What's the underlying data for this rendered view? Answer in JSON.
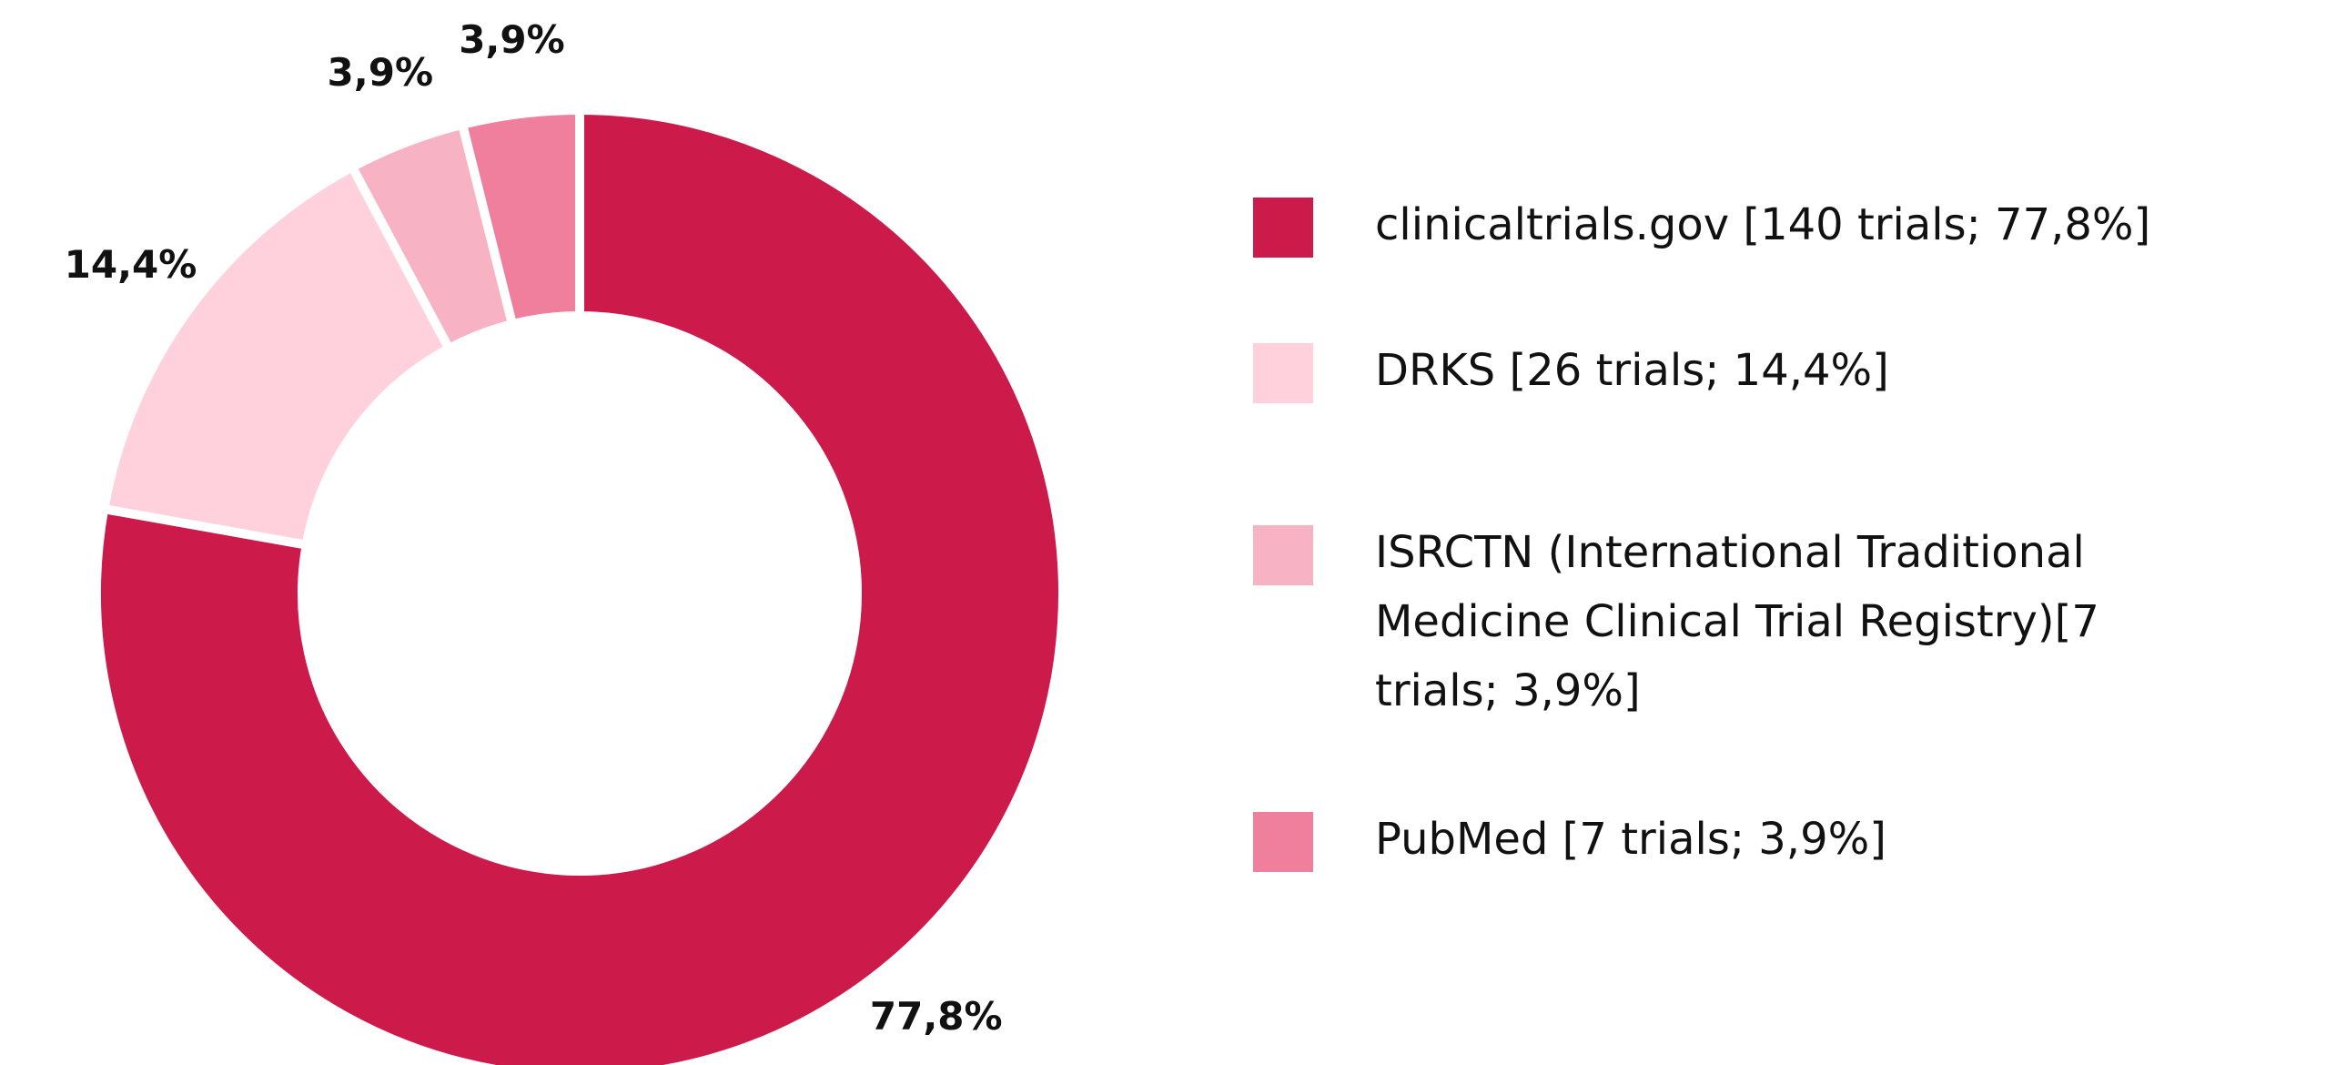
{
  "chart_data": {
    "type": "donut",
    "categories": [
      "clinicaltrials.gov [140 trials; 77,8%]",
      "DRKS [26 trials; 14,4%]",
      "ISRCTN (International Traditional Medicine Clinical Trial Registry)[7 trials; 3,9%]",
      "PubMed [7 trials; 3,9%]"
    ],
    "values": [
      77.8,
      14.4,
      3.9,
      3.9
    ],
    "value_labels": [
      "77,8%",
      "14,4%",
      "3,9%",
      "3,9%"
    ],
    "colors": [
      "#cc1a4b",
      "#ffd1dc",
      "#f7b3c4",
      "#ef7f9c"
    ],
    "legend": "right"
  }
}
